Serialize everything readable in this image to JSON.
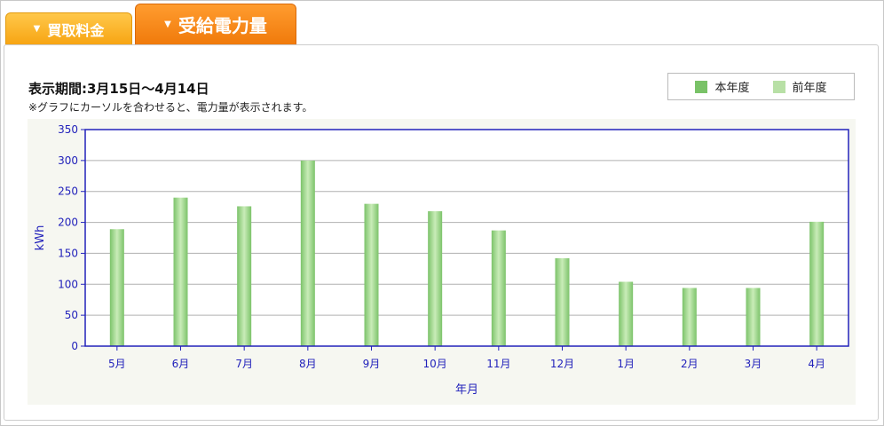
{
  "tabs": [
    {
      "label": "買取料金",
      "arrow": "▼",
      "active": false
    },
    {
      "label": "受給電力量",
      "arrow": "▼",
      "active": true
    }
  ],
  "period_text": "表示期間:3月15日～4月14日",
  "note_text": "※グラフにカーソルを合わせると、電力量が表示されます。",
  "legend": {
    "current": {
      "label": "本年度",
      "color": "#79c267"
    },
    "previous": {
      "label": "前年度",
      "color": "#b8e0a6"
    }
  },
  "chart_data": {
    "type": "bar",
    "categories": [
      "5月",
      "6月",
      "7月",
      "8月",
      "9月",
      "10月",
      "11月",
      "12月",
      "1月",
      "2月",
      "3月",
      "4月"
    ],
    "series": [
      {
        "name": "本年度",
        "values": [
          189,
          240,
          226,
          300,
          230,
          218,
          187,
          142,
          104,
          94,
          94,
          201
        ]
      }
    ],
    "xlabel": "年月",
    "ylabel": "kWh",
    "ylim": [
      0,
      350
    ],
    "yticks": [
      0,
      50,
      100,
      150,
      200,
      250,
      300,
      350
    ],
    "grid": true,
    "colors": {
      "axis": "#2222bb",
      "grid": "#b0b0b0",
      "bar_dark": "#7cc36a",
      "bar_light": "#c9ecb8"
    }
  }
}
